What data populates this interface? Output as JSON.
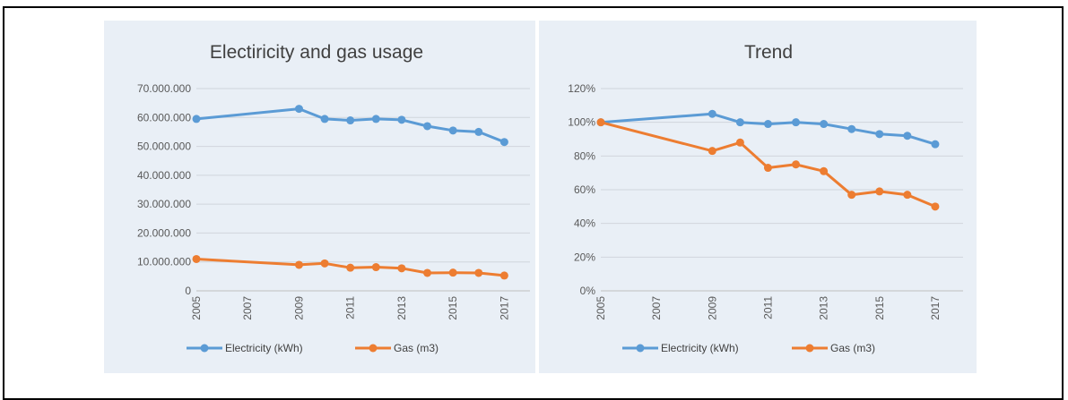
{
  "colors": {
    "electricity": "#5b9bd5",
    "gas": "#ed7d31",
    "grid": "#d0d5dc",
    "background": "#e9eff6"
  },
  "chart_data": [
    {
      "type": "line",
      "title": "Electiricity and gas usage",
      "x": [
        2005,
        2009,
        2010,
        2011,
        2012,
        2013,
        2014,
        2015,
        2016,
        2017
      ],
      "x_tick_labels": [
        "2005",
        "2007",
        "2009",
        "2011",
        "2013",
        "2015",
        "2017"
      ],
      "y_tick_labels": [
        "0",
        "10.000.000",
        "20.000.000",
        "30.000.000",
        "40.000.000",
        "50.000.000",
        "60.000.000",
        "70.000.000"
      ],
      "ylim": [
        0,
        70000000
      ],
      "xlim": [
        2005,
        2018
      ],
      "grid": true,
      "legend_position": "bottom",
      "series": [
        {
          "name": "Electricity (kWh)",
          "values": [
            59500000,
            63000000,
            59500000,
            59000000,
            59500000,
            59200000,
            57000000,
            55500000,
            55000000,
            51500000
          ]
        },
        {
          "name": "Gas (m3)",
          "values": [
            11000000,
            9000000,
            9500000,
            8000000,
            8200000,
            7800000,
            6200000,
            6300000,
            6200000,
            5300000
          ]
        }
      ]
    },
    {
      "type": "line",
      "title": "Trend",
      "x": [
        2005,
        2009,
        2010,
        2011,
        2012,
        2013,
        2014,
        2015,
        2016,
        2017
      ],
      "x_tick_labels": [
        "2005",
        "2007",
        "2009",
        "2011",
        "2013",
        "2015",
        "2017"
      ],
      "y_tick_labels": [
        "0%",
        "20%",
        "40%",
        "60%",
        "80%",
        "100%",
        "120%"
      ],
      "ylim": [
        0,
        120
      ],
      "xlim": [
        2005,
        2018
      ],
      "grid": true,
      "legend_position": "bottom",
      "series": [
        {
          "name": "Electricity (kWh)",
          "values": [
            100,
            105,
            100,
            99,
            100,
            99,
            96,
            93,
            92,
            87
          ]
        },
        {
          "name": "Gas (m3)",
          "values": [
            100,
            83,
            88,
            73,
            75,
            71,
            57,
            59,
            57,
            50
          ]
        }
      ]
    }
  ]
}
